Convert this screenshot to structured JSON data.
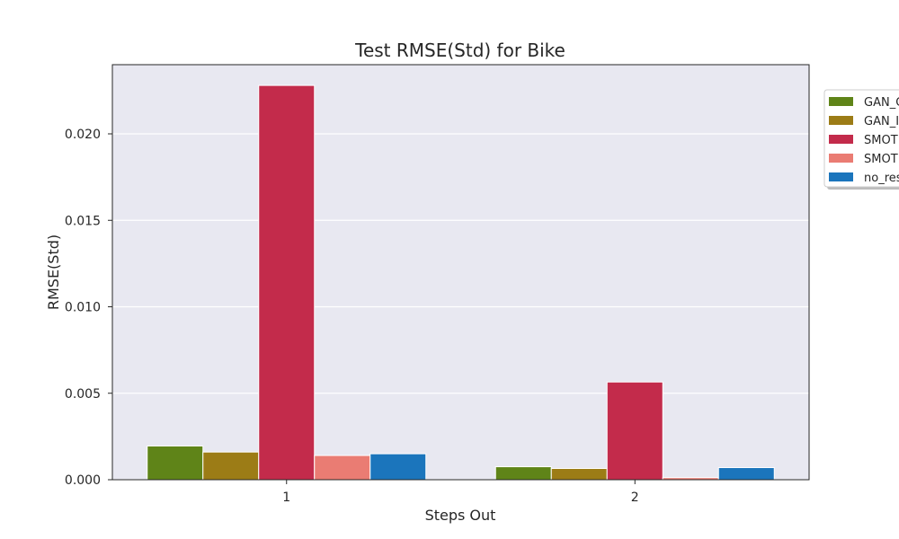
{
  "chart_data": {
    "type": "bar",
    "title": "Test RMSE(Std) for Bike",
    "xlabel": "Steps Out",
    "ylabel": "RMSE(Std)",
    "categories": [
      "1",
      "2"
    ],
    "ylim": [
      0,
      0.024
    ],
    "yticks": [
      "0.000",
      "0.005",
      "0.010",
      "0.015",
      "0.020"
    ],
    "ytick_values": [
      0,
      0.005,
      0.01,
      0.015,
      0.02
    ],
    "grid": true,
    "legend_position": "outside-right-top",
    "series": [
      {
        "name": "GAN_C",
        "color": "#5f8418",
        "values": [
          0.00195,
          0.00075
        ]
      },
      {
        "name": "GAN_I",
        "color": "#9c7c16",
        "values": [
          0.0016,
          0.00065
        ]
      },
      {
        "name": "SMOT",
        "color": "#c32b4b",
        "values": [
          0.0228,
          0.00565
        ]
      },
      {
        "name": "SMOT",
        "color": "#ea7c73",
        "values": [
          0.0014,
          0.00012
        ]
      },
      {
        "name": "no_res",
        "color": "#1b75bc",
        "values": [
          0.0015,
          0.0007
        ]
      }
    ]
  }
}
